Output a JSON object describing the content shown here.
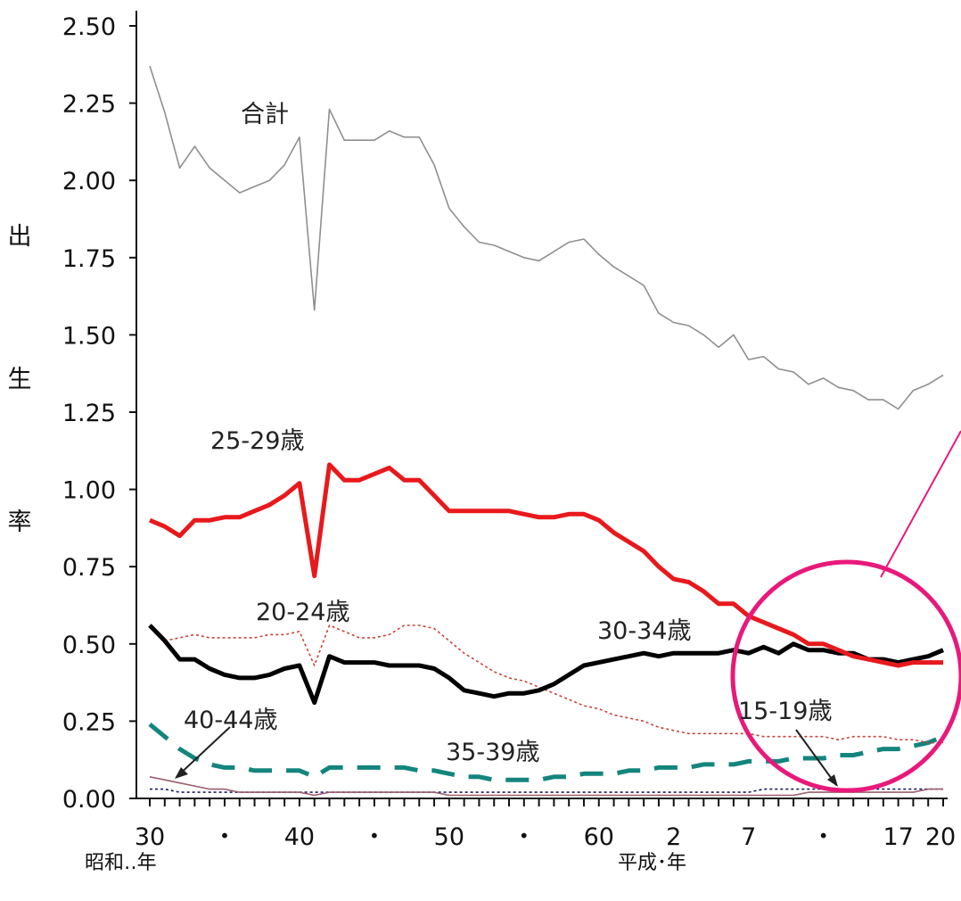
{
  "chart_data": {
    "type": "line",
    "ylabel": "出生率",
    "ylabel_chars": [
      "出",
      "生",
      "率"
    ],
    "ylim": [
      0,
      2.5
    ],
    "yticks": [
      "0.00",
      "0.25",
      "0.50",
      "0.75",
      "1.00",
      "1.25",
      "1.50",
      "1.75",
      "2.00",
      "2.25",
      "2.50"
    ],
    "x_ticks": [
      "30",
      "・",
      "40",
      "・",
      "50",
      "・",
      "60",
      "2",
      "7",
      "・",
      "17",
      "20"
    ],
    "x_era_labels": [
      "昭和‥年",
      "平成･年"
    ],
    "x_years": [
      1955,
      1956,
      1957,
      1958,
      1959,
      1960,
      1961,
      1962,
      1963,
      1964,
      1965,
      1966,
      1967,
      1968,
      1969,
      1970,
      1971,
      1972,
      1973,
      1974,
      1975,
      1976,
      1977,
      1978,
      1979,
      1980,
      1981,
      1982,
      1983,
      1984,
      1985,
      1986,
      1987,
      1988,
      1989,
      1990,
      1991,
      1992,
      1993,
      1994,
      1995,
      1996,
      1997,
      1998,
      1999,
      2000,
      2001,
      2002,
      2003,
      2004,
      2005,
      2006,
      2007,
      2008
    ],
    "series": [
      {
        "name": "合計",
        "color": "#8f8f8f",
        "style": "thin",
        "values": [
          2.37,
          2.22,
          2.04,
          2.11,
          2.04,
          2.0,
          1.96,
          1.98,
          2.0,
          2.05,
          2.14,
          1.58,
          2.23,
          2.13,
          2.13,
          2.13,
          2.16,
          2.14,
          2.14,
          2.05,
          1.91,
          1.85,
          1.8,
          1.79,
          1.77,
          1.75,
          1.74,
          1.77,
          1.8,
          1.81,
          1.76,
          1.72,
          1.69,
          1.66,
          1.57,
          1.54,
          1.53,
          1.5,
          1.46,
          1.5,
          1.42,
          1.43,
          1.39,
          1.38,
          1.34,
          1.36,
          1.33,
          1.32,
          1.29,
          1.29,
          1.26,
          1.32,
          1.34,
          1.37
        ]
      },
      {
        "name": "25-29歳",
        "color": "#e8191c",
        "style": "thick",
        "values": [
          0.9,
          0.88,
          0.85,
          0.9,
          0.9,
          0.91,
          0.91,
          0.93,
          0.95,
          0.98,
          1.02,
          0.72,
          1.08,
          1.03,
          1.03,
          1.05,
          1.07,
          1.03,
          1.03,
          0.98,
          0.93,
          0.93,
          0.93,
          0.93,
          0.93,
          0.92,
          0.91,
          0.91,
          0.92,
          0.92,
          0.9,
          0.86,
          0.83,
          0.8,
          0.75,
          0.71,
          0.7,
          0.67,
          0.63,
          0.63,
          0.59,
          0.57,
          0.55,
          0.53,
          0.5,
          0.5,
          0.48,
          0.46,
          0.45,
          0.44,
          0.43,
          0.44,
          0.44,
          0.44
        ]
      },
      {
        "name": "30-34歳",
        "color": "#000000",
        "style": "thick",
        "values": [
          0.56,
          0.51,
          0.45,
          0.45,
          0.42,
          0.4,
          0.39,
          0.39,
          0.4,
          0.42,
          0.43,
          0.31,
          0.46,
          0.44,
          0.44,
          0.44,
          0.43,
          0.43,
          0.43,
          0.42,
          0.39,
          0.35,
          0.34,
          0.33,
          0.34,
          0.34,
          0.35,
          0.37,
          0.4,
          0.43,
          0.44,
          0.45,
          0.46,
          0.47,
          0.46,
          0.47,
          0.47,
          0.47,
          0.47,
          0.48,
          0.47,
          0.49,
          0.47,
          0.5,
          0.48,
          0.48,
          0.47,
          0.47,
          0.45,
          0.45,
          0.44,
          0.45,
          0.46,
          0.48
        ]
      },
      {
        "name": "20-24歳",
        "color": "#c8443a",
        "style": "dotted",
        "values": [
          0.56,
          0.51,
          0.52,
          0.53,
          0.52,
          0.52,
          0.52,
          0.52,
          0.53,
          0.53,
          0.54,
          0.43,
          0.56,
          0.54,
          0.52,
          0.52,
          0.53,
          0.56,
          0.56,
          0.55,
          0.51,
          0.47,
          0.44,
          0.41,
          0.39,
          0.38,
          0.36,
          0.34,
          0.32,
          0.3,
          0.29,
          0.27,
          0.26,
          0.25,
          0.23,
          0.22,
          0.21,
          0.21,
          0.21,
          0.21,
          0.21,
          0.2,
          0.2,
          0.2,
          0.2,
          0.2,
          0.19,
          0.2,
          0.2,
          0.2,
          0.19,
          0.19,
          0.18,
          0.18
        ]
      },
      {
        "name": "35-39歳",
        "color": "#13857d",
        "style": "dashed",
        "values": [
          0.24,
          0.2,
          0.16,
          0.13,
          0.11,
          0.1,
          0.1,
          0.09,
          0.09,
          0.09,
          0.09,
          0.07,
          0.1,
          0.1,
          0.1,
          0.1,
          0.1,
          0.1,
          0.09,
          0.09,
          0.08,
          0.07,
          0.07,
          0.06,
          0.06,
          0.06,
          0.06,
          0.07,
          0.07,
          0.08,
          0.08,
          0.08,
          0.09,
          0.09,
          0.1,
          0.1,
          0.1,
          0.11,
          0.11,
          0.11,
          0.12,
          0.12,
          0.12,
          0.13,
          0.13,
          0.13,
          0.14,
          0.14,
          0.15,
          0.16,
          0.16,
          0.17,
          0.18,
          0.2
        ]
      },
      {
        "name": "40-44歳",
        "color": "#9b5d6c",
        "style": "thin",
        "values": [
          0.07,
          0.06,
          0.05,
          0.04,
          0.03,
          0.03,
          0.02,
          0.02,
          0.02,
          0.02,
          0.02,
          0.01,
          0.02,
          0.02,
          0.02,
          0.02,
          0.02,
          0.02,
          0.02,
          0.02,
          0.01,
          0.01,
          0.01,
          0.01,
          0.01,
          0.01,
          0.01,
          0.01,
          0.01,
          0.01,
          0.01,
          0.01,
          0.01,
          0.01,
          0.01,
          0.01,
          0.01,
          0.01,
          0.01,
          0.01,
          0.01,
          0.01,
          0.01,
          0.01,
          0.02,
          0.02,
          0.02,
          0.02,
          0.02,
          0.02,
          0.02,
          0.02,
          0.03,
          0.03
        ]
      },
      {
        "name": "15-19歳",
        "color": "#1a1a6e",
        "style": "dotted",
        "values": [
          0.03,
          0.03,
          0.02,
          0.02,
          0.02,
          0.02,
          0.02,
          0.02,
          0.02,
          0.02,
          0.02,
          0.02,
          0.02,
          0.02,
          0.02,
          0.02,
          0.02,
          0.02,
          0.02,
          0.02,
          0.02,
          0.02,
          0.02,
          0.02,
          0.02,
          0.02,
          0.02,
          0.02,
          0.02,
          0.02,
          0.02,
          0.02,
          0.02,
          0.02,
          0.02,
          0.02,
          0.02,
          0.02,
          0.02,
          0.02,
          0.02,
          0.03,
          0.03,
          0.03,
          0.03,
          0.03,
          0.03,
          0.03,
          0.03,
          0.03,
          0.03,
          0.03,
          0.03,
          0.03
        ]
      }
    ],
    "annotation_color": "#e8197a"
  }
}
